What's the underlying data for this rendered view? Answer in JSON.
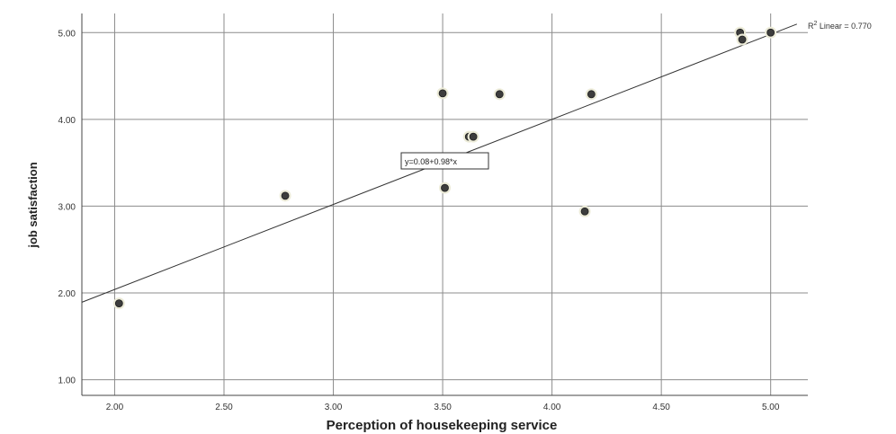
{
  "chart_data": {
    "type": "scatter",
    "title": "",
    "xlabel": "Perception of housekeeping service",
    "ylabel": "job satisfaction",
    "xlim": [
      1.85,
      5.17
    ],
    "ylim": [
      0.82,
      5.22
    ],
    "x_ticks": [
      "2.00",
      "2.50",
      "3.00",
      "3.50",
      "4.00",
      "4.50",
      "5.00"
    ],
    "x_tick_values": [
      2.0,
      2.5,
      3.0,
      3.5,
      4.0,
      4.5,
      5.0
    ],
    "y_ticks": [
      "1.00",
      "2.00",
      "3.00",
      "4.00",
      "5.00"
    ],
    "y_tick_values": [
      1.0,
      2.0,
      3.0,
      4.0,
      5.0
    ],
    "grid": true,
    "points": [
      {
        "x": 2.02,
        "y": 1.88
      },
      {
        "x": 2.78,
        "y": 3.12
      },
      {
        "x": 3.5,
        "y": 4.3
      },
      {
        "x": 3.51,
        "y": 3.21
      },
      {
        "x": 3.62,
        "y": 3.8
      },
      {
        "x": 3.64,
        "y": 3.8
      },
      {
        "x": 3.76,
        "y": 4.29
      },
      {
        "x": 4.15,
        "y": 2.94
      },
      {
        "x": 4.18,
        "y": 4.29
      },
      {
        "x": 4.86,
        "y": 5.0
      },
      {
        "x": 4.87,
        "y": 4.92
      },
      {
        "x": 5.0,
        "y": 5.0
      }
    ],
    "fit_line": {
      "intercept": 0.08,
      "slope": 0.98
    },
    "fit_label": "y=0.08+0.98*x",
    "r2_label_prefix": "R",
    "r2_label_sup": "2",
    "r2_label_suffix": " Linear = 0.770",
    "colors": {
      "point_fill": "#3d3d3d",
      "point_halo": "#ecebd8",
      "grid": "#8c8c8c",
      "fit_line": "#333333",
      "axis": "#444444"
    }
  }
}
